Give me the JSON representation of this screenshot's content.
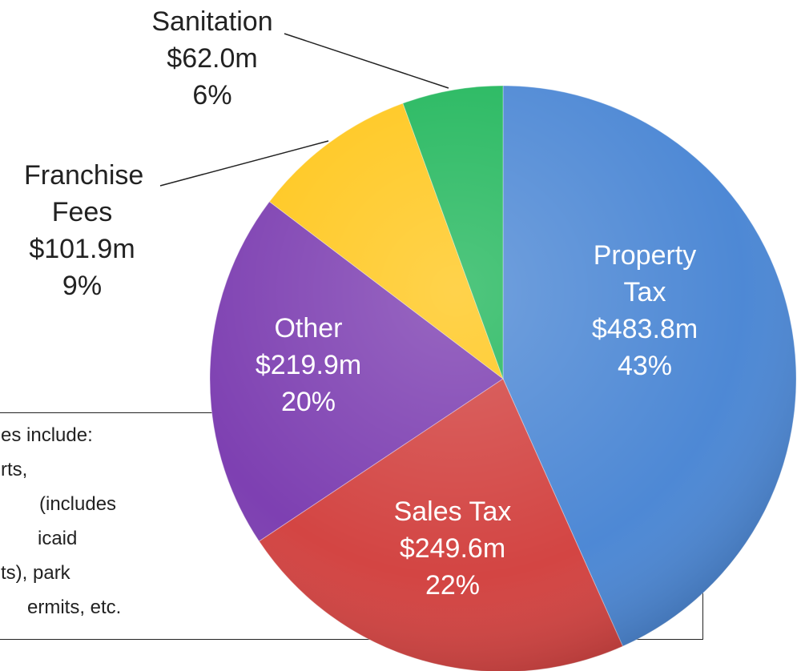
{
  "chart_data": {
    "type": "pie",
    "categories": [
      "Property Tax",
      "Sales Tax",
      "Other",
      "Franchise Fees",
      "Sanitation"
    ],
    "values": [
      483.8,
      249.6,
      219.9,
      101.9,
      62.0
    ],
    "value_labels": [
      "$483.8m",
      "$249.6m",
      "$219.9m",
      "$101.9m",
      "$62.0m"
    ],
    "percent_labels": [
      "43%",
      "22%",
      "20%",
      "9%",
      "6%"
    ],
    "colors": [
      "#4a86d4",
      "#d2413f",
      "#7b3cb0",
      "#ffc619",
      "#1fb65a"
    ],
    "label_colors": [
      "#ffffff",
      "#ffffff",
      "#ffffff",
      "#222222",
      "#222222"
    ],
    "note": {
      "lines": [
        "es include:",
        "rts,",
        "(includes",
        "icaid",
        "ts), park",
        "ermits, etc."
      ]
    }
  }
}
